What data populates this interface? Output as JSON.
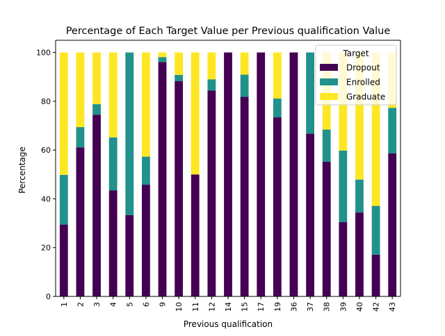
{
  "chart_data": {
    "type": "bar",
    "stacked": true,
    "title": "Percentage of Each Target Value per Previous qualification Value",
    "xlabel": "Previous qualification",
    "ylabel": "Percentage",
    "ylim": [
      0,
      105
    ],
    "yticks": [
      0,
      20,
      40,
      60,
      80,
      100
    ],
    "grid": false,
    "legend": {
      "title": "Target",
      "position": "top-right"
    },
    "categories": [
      "1",
      "2",
      "3",
      "4",
      "5",
      "6",
      "9",
      "10",
      "11",
      "12",
      "14",
      "15",
      "17",
      "19",
      "36",
      "37",
      "38",
      "39",
      "40",
      "42",
      "43"
    ],
    "series": [
      {
        "name": "Dropout",
        "color": "#440154",
        "values": [
          29.5,
          61.1,
          74.5,
          43.5,
          33.3,
          45.8,
          96.1,
          88.3,
          50.0,
          84.4,
          100.0,
          81.8,
          100.0,
          73.4,
          100.0,
          66.7,
          55.2,
          30.5,
          34.4,
          17.1,
          58.7
        ]
      },
      {
        "name": "Enrolled",
        "color": "#21918c",
        "values": [
          20.3,
          8.3,
          4.3,
          21.7,
          66.7,
          11.5,
          2.0,
          2.5,
          0.0,
          4.6,
          0.0,
          9.1,
          0.0,
          7.7,
          0.0,
          33.3,
          13.2,
          29.3,
          13.5,
          20.0,
          18.6
        ]
      },
      {
        "name": "Graduate",
        "color": "#fde725",
        "values": [
          50.2,
          30.6,
          21.2,
          34.8,
          0.0,
          42.7,
          1.9,
          9.2,
          50.0,
          11.0,
          0.0,
          9.1,
          0.0,
          18.9,
          0.0,
          0.0,
          31.6,
          40.2,
          52.1,
          62.9,
          22.7
        ]
      }
    ]
  }
}
